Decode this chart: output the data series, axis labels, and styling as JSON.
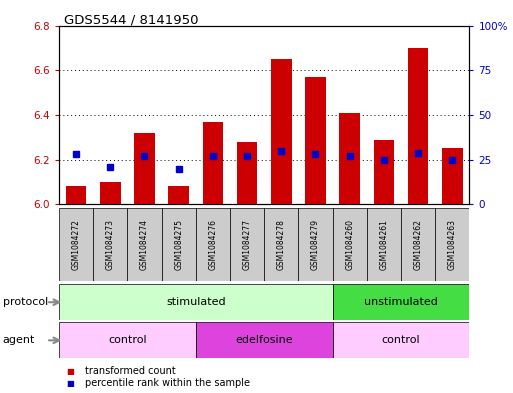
{
  "title": "GDS5544 / 8141950",
  "samples": [
    "GSM1084272",
    "GSM1084273",
    "GSM1084274",
    "GSM1084275",
    "GSM1084276",
    "GSM1084277",
    "GSM1084278",
    "GSM1084279",
    "GSM1084260",
    "GSM1084261",
    "GSM1084262",
    "GSM1084263"
  ],
  "transformed_count": [
    6.08,
    6.1,
    6.32,
    6.08,
    6.37,
    6.28,
    6.65,
    6.57,
    6.41,
    6.29,
    6.7,
    6.25
  ],
  "percentile_rank": [
    28,
    21,
    27,
    20,
    27,
    27,
    30,
    28,
    27,
    25,
    29,
    25
  ],
  "ylim_left": [
    6.0,
    6.8
  ],
  "ylim_right": [
    0,
    100
  ],
  "yticks_left": [
    6.0,
    6.2,
    6.4,
    6.6,
    6.8
  ],
  "yticks_right": [
    0,
    25,
    50,
    75,
    100
  ],
  "ytick_labels_right": [
    "0",
    "25",
    "50",
    "75",
    "100%"
  ],
  "bar_color": "#cc0000",
  "dot_color": "#0000cc",
  "protocol_groups": [
    {
      "label": "stimulated",
      "start": 0,
      "end": 7,
      "color": "#ccffcc"
    },
    {
      "label": "unstimulated",
      "start": 8,
      "end": 11,
      "color": "#44dd44"
    }
  ],
  "agent_groups": [
    {
      "label": "control",
      "start": 0,
      "end": 3,
      "color": "#ffccff"
    },
    {
      "label": "edelfosine",
      "start": 4,
      "end": 7,
      "color": "#dd44dd"
    },
    {
      "label": "control",
      "start": 8,
      "end": 11,
      "color": "#ffccff"
    }
  ],
  "sample_bg_color": "#cccccc",
  "protocol_label": "protocol",
  "agent_label": "agent",
  "legend_items": [
    {
      "label": "transformed count",
      "color": "#cc0000"
    },
    {
      "label": "percentile rank within the sample",
      "color": "#0000cc"
    }
  ]
}
